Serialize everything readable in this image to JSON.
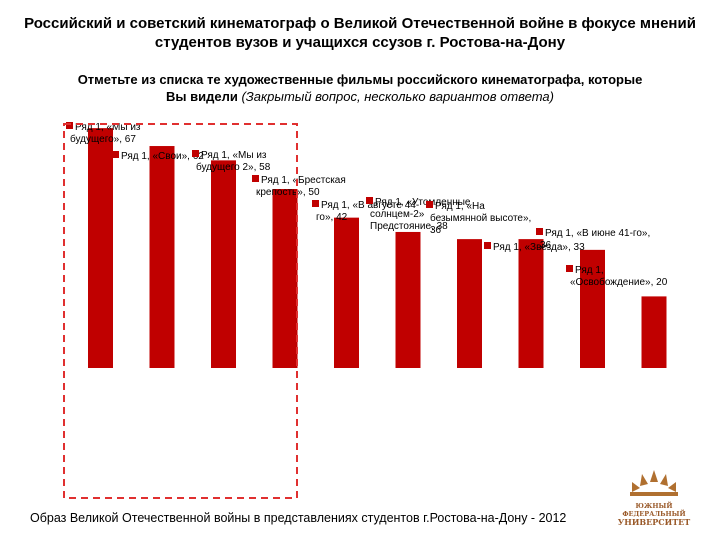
{
  "header": {
    "title_line1": "Российский и советский кинематограф о Великой Отечественной войне в фокусе мнений",
    "title_line2": "студентов вузов и учащихся ссузов г. Ростова-на-Дону"
  },
  "question": {
    "line1": "Отметьте из списка те художественные фильмы российского кинематографа, которые",
    "line2_bold": "Вы видели",
    "line2_italic": "(Закрытый вопрос, несколько вариантов ответа)"
  },
  "footer": {
    "text": "Образ Великой Отечественной войны в представлениях студентов г.Ростова-на-Дону - 2012"
  },
  "logo": {
    "line1": "ЮЖНЫЙ",
    "line2": "ФЕДЕРАЛЬНЫЙ",
    "line3": "УНИВЕРСИТЕТ"
  },
  "colors": {
    "bar": "#c00000",
    "highlight": "#e03030",
    "logo": "#b07030"
  },
  "chart_data": {
    "type": "bar",
    "series_name": "Ряд 1",
    "ylim": [
      0,
      75
    ],
    "categories": [
      "«Мы из будущего»",
      "«Свои»",
      "«Мы из будущего 2»",
      "«Брестская крепость»",
      "«В августе 44-го»",
      "«Утомленные солнцем-2»",
      "«На безымянной высоте»",
      "«В июне 41-го»",
      "«Звезда»",
      "«Освобождение»"
    ],
    "values": [
      67,
      62,
      58,
      50,
      42,
      38,
      36,
      36,
      33,
      20
    ],
    "data_labels": [
      [
        "Ряд 1, «Мы из",
        "будущего», 67"
      ],
      [
        "Ряд 1, «Свои», 62"
      ],
      [
        "Ряд 1, «Мы из",
        "будущего 2», 58"
      ],
      [
        "Ряд 1, «Брестская",
        "крепость», 50"
      ],
      [
        "Ряд 1, «В августе 44-",
        "го», 42"
      ],
      [
        "Ряд 1, «Утомленные",
        "солнцем-2»",
        "Предстояние, 38"
      ],
      [
        "Ряд 1, «На",
        "безымянной высоте»,",
        "36"
      ],
      [
        "Ряд 1, «В июне 41-го»,",
        "36"
      ],
      [
        "Ряд 1, «Звезда», 33"
      ],
      [
        "Ряд 1,",
        "«Освобождение», 20"
      ]
    ]
  }
}
